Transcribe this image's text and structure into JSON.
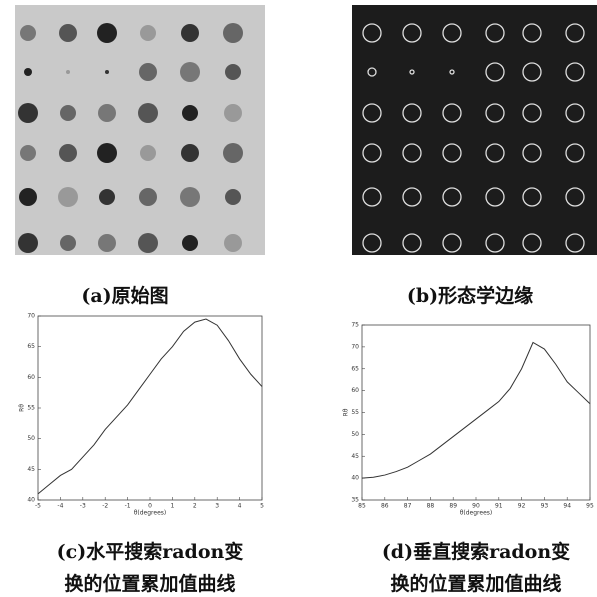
{
  "figures": [
    {
      "caption": "(a)原始图"
    },
    {
      "caption": "(b)形态学边缘"
    }
  ],
  "chart_data": [
    {
      "type": "line",
      "caption": [
        "(c)水平搜索radon变",
        "换的位置累加值曲线"
      ],
      "x_label": "θ(degrees)",
      "y_label": "Rθ",
      "x": [
        -5,
        -4.5,
        -4,
        -3.5,
        -3,
        -2.5,
        -2,
        -1.5,
        -1,
        -0.5,
        0,
        0.5,
        1,
        1.5,
        2,
        2.5,
        3,
        3.5,
        4,
        4.5,
        5
      ],
      "series": [
        {
          "color": "#333333",
          "values": [
            41,
            42.5,
            44,
            45,
            47,
            49,
            51.5,
            53.5,
            55.5,
            58,
            60.5,
            63,
            65,
            67.5,
            69,
            69.5,
            68.5,
            66,
            63,
            60.5,
            58.5
          ]
        }
      ],
      "xlim": [
        -5,
        5
      ],
      "ylim": [
        40,
        70
      ],
      "xticks": [
        -5,
        -4,
        -3,
        -2,
        -1,
        0,
        1,
        2,
        3,
        4,
        5
      ],
      "yticks": [
        40,
        45,
        50,
        55,
        60,
        65,
        70
      ]
    },
    {
      "type": "line",
      "caption": [
        "(d)垂直搜索radon变",
        "换的位置累加值曲线"
      ],
      "x_label": "θ(degrees)",
      "y_label": "Rθ",
      "x": [
        85,
        85.5,
        86,
        86.5,
        87,
        87.5,
        88,
        88.5,
        89,
        89.5,
        90,
        90.5,
        91,
        91.5,
        92,
        92.5,
        93,
        93.5,
        94,
        94.5,
        95
      ],
      "series": [
        {
          "color": "#333333",
          "values": [
            40,
            40.2,
            40.7,
            41.5,
            42.5,
            44,
            45.5,
            47.5,
            49.5,
            51.5,
            53.5,
            55.5,
            57.5,
            60.5,
            65,
            71,
            69.5,
            66,
            62,
            59.5,
            57
          ]
        }
      ],
      "xlim": [
        85,
        95
      ],
      "ylim": [
        35,
        75
      ],
      "xticks": [
        85,
        86,
        87,
        88,
        89,
        90,
        91,
        92,
        93,
        94,
        95
      ],
      "yticks": [
        35,
        40,
        45,
        50,
        55,
        60,
        65,
        70,
        75
      ]
    }
  ]
}
